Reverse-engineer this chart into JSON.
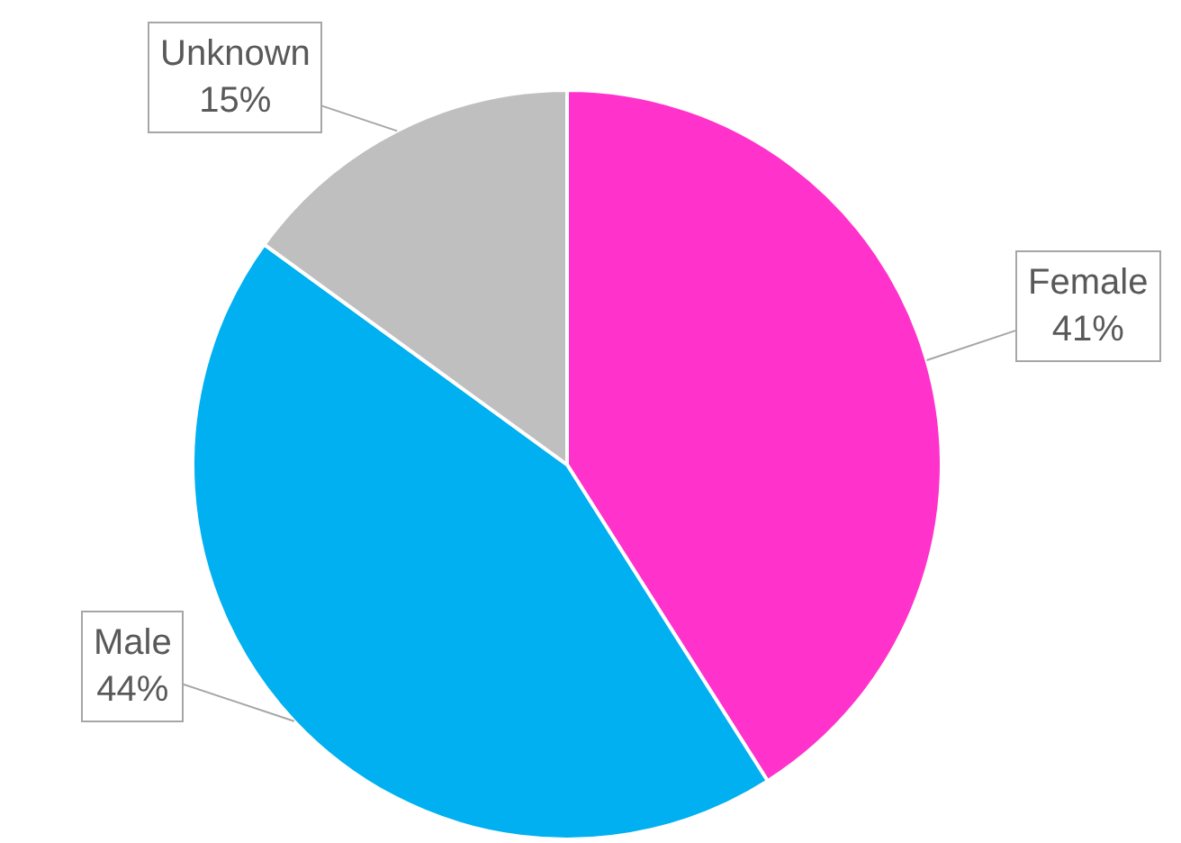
{
  "chart_data": {
    "type": "pie",
    "categories": [
      "Female",
      "Male",
      "Unknown"
    ],
    "values": [
      41,
      44,
      15
    ],
    "colors": [
      "#ff33cc",
      "#00b0f0",
      "#bfbfbf"
    ],
    "value_labels": [
      "41%",
      "44%",
      "15%"
    ],
    "legend": false
  }
}
